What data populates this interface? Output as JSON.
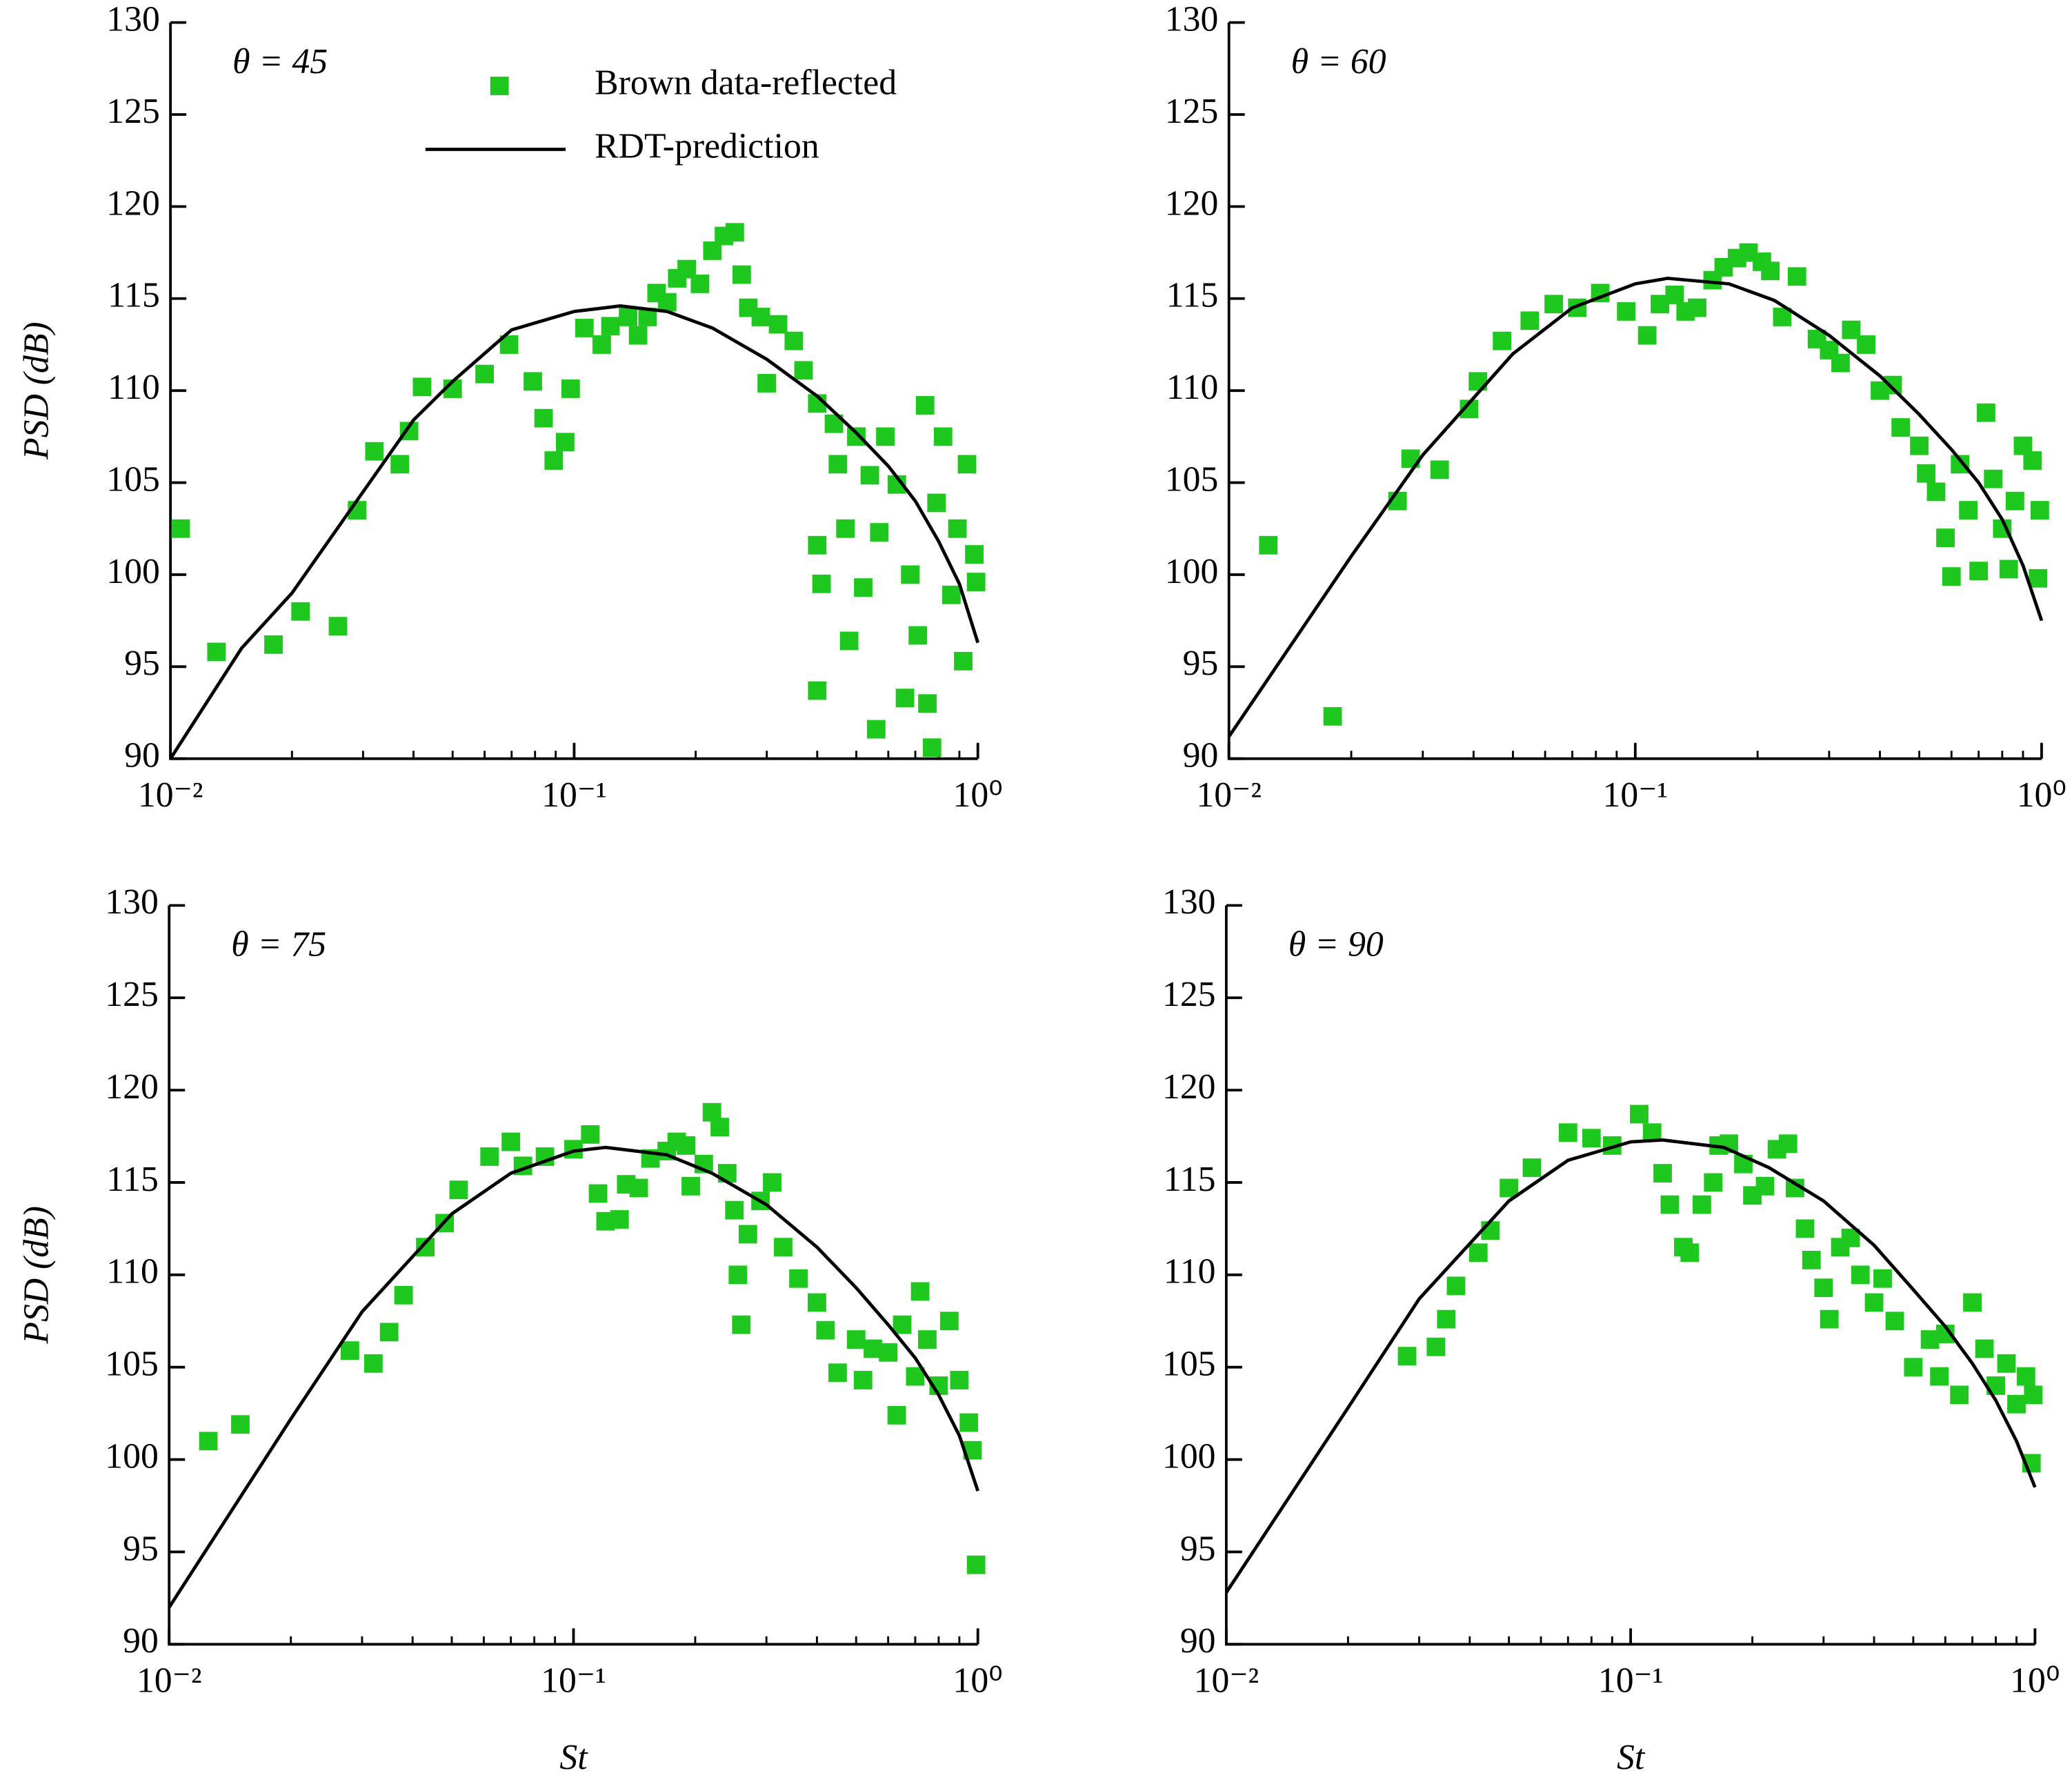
{
  "chart_data": [
    {
      "type": "scatter",
      "annotation": "θ = 45",
      "ylabel": "PSD (dB)",
      "xscale": "log",
      "legend": "upper center",
      "xlim": [
        0.01,
        1
      ],
      "xticks": [
        {
          "value": 0.01,
          "label": "10⁻²"
        },
        {
          "value": 0.1,
          "label": "10⁻¹"
        },
        {
          "value": 1,
          "label": "10⁰"
        }
      ],
      "ylim": [
        90,
        130
      ],
      "yticks": [
        90,
        95,
        100,
        105,
        110,
        115,
        120,
        125,
        130
      ],
      "series": [
        {
          "name": "Brown data-reflected",
          "color": "#1ec81e",
          "marker": "square",
          "x": [
            0.0106,
            0.013,
            0.018,
            0.021,
            0.026,
            0.029,
            0.032,
            0.037,
            0.039,
            0.042,
            0.05,
            0.06,
            0.069,
            0.079,
            0.084,
            0.089,
            0.095,
            0.098,
            0.106,
            0.117,
            0.123,
            0.136,
            0.144,
            0.152,
            0.16,
            0.17,
            0.18,
            0.19,
            0.205,
            0.22,
            0.235,
            0.25,
            0.26,
            0.27,
            0.29,
            0.3,
            0.32,
            0.35,
            0.37,
            0.4,
            0.4,
            0.4,
            0.41,
            0.44,
            0.45,
            0.47,
            0.48,
            0.5,
            0.52,
            0.54,
            0.56,
            0.57,
            0.59,
            0.63,
            0.66,
            0.68,
            0.71,
            0.74,
            0.75,
            0.77,
            0.79,
            0.82,
            0.86,
            0.89,
            0.92,
            0.94,
            0.98,
            0.99
          ],
          "values": [
            102.5,
            95.8,
            96.2,
            98,
            97.2,
            103.5,
            106.7,
            106,
            107.8,
            110.2,
            110.1,
            110.9,
            112.5,
            110.5,
            108.5,
            106.2,
            107.2,
            110.1,
            113.4,
            112.5,
            113.5,
            114,
            113,
            114,
            115.3,
            114.8,
            116.1,
            116.6,
            115.8,
            117.6,
            118.4,
            118.6,
            116.3,
            114.5,
            114,
            110.4,
            113.6,
            112.7,
            111.1,
            109.3,
            101.6,
            93.7,
            99.5,
            108.2,
            106,
            102.5,
            96.4,
            107.5,
            99.3,
            105.4,
            91.6,
            102.3,
            107.5,
            104.9,
            93.3,
            100,
            96.7,
            109.2,
            93,
            90.6,
            103.9,
            107.5,
            98.9,
            102.5,
            95.3,
            106,
            101.1,
            99.6
          ]
        },
        {
          "name": "RDT-prediction",
          "color": "#000000",
          "type": "line",
          "x": [
            0.01,
            0.015,
            0.02,
            0.03,
            0.04,
            0.05,
            0.07,
            0.1,
            0.13,
            0.17,
            0.22,
            0.3,
            0.4,
            0.5,
            0.6,
            0.7,
            0.8,
            0.9,
            1
          ],
          "values": [
            90,
            96,
            99,
            104.5,
            108.4,
            110.5,
            113.3,
            114.3,
            114.6,
            114.3,
            113.4,
            111.7,
            109.7,
            107.7,
            105.9,
            104,
            101.8,
            99.5,
            96.3
          ]
        }
      ]
    },
    {
      "type": "scatter",
      "annotation": "θ = 60",
      "xscale": "log",
      "xlim": [
        0.01,
        1
      ],
      "xticks": [
        {
          "value": 0.01,
          "label": "10⁻²"
        },
        {
          "value": 0.1,
          "label": "10⁻¹"
        },
        {
          "value": 1,
          "label": "10⁰"
        }
      ],
      "ylim": [
        90,
        130
      ],
      "yticks": [
        90,
        95,
        100,
        105,
        110,
        115,
        120,
        125,
        130
      ],
      "series": [
        {
          "color": "#1ec81e",
          "marker": "square",
          "x": [
            0.0125,
            0.018,
            0.026,
            0.028,
            0.033,
            0.039,
            0.041,
            0.047,
            0.055,
            0.063,
            0.072,
            0.082,
            0.095,
            0.107,
            0.115,
            0.125,
            0.133,
            0.142,
            0.155,
            0.165,
            0.178,
            0.19,
            0.205,
            0.215,
            0.23,
            0.25,
            0.28,
            0.3,
            0.32,
            0.34,
            0.37,
            0.4,
            0.43,
            0.45,
            0.5,
            0.52,
            0.55,
            0.58,
            0.6,
            0.63,
            0.66,
            0.7,
            0.73,
            0.76,
            0.8,
            0.83,
            0.86,
            0.9,
            0.95,
            0.98,
            0.99
          ],
          "values": [
            101.6,
            92.3,
            104,
            106.3,
            105.7,
            109,
            110.5,
            112.7,
            113.8,
            114.7,
            114.5,
            115.3,
            114.3,
            113,
            114.7,
            115.2,
            114.3,
            114.5,
            116,
            116.7,
            117.2,
            117.5,
            117,
            116.5,
            114,
            116.2,
            112.8,
            112.2,
            111.5,
            113.3,
            112.5,
            110,
            110.3,
            108,
            107,
            105.5,
            104.5,
            102,
            99.9,
            106,
            103.5,
            100.2,
            108.8,
            105.2,
            102.5,
            100.3,
            104,
            107,
            106.2,
            99.8,
            103.5
          ]
        },
        {
          "color": "#000000",
          "type": "line",
          "x": [
            0.01,
            0.02,
            0.03,
            0.05,
            0.07,
            0.1,
            0.12,
            0.17,
            0.22,
            0.3,
            0.4,
            0.5,
            0.6,
            0.7,
            0.8,
            0.9,
            1
          ],
          "values": [
            91.2,
            101,
            106.5,
            112,
            114.5,
            115.8,
            116.1,
            115.8,
            114.9,
            113,
            110.8,
            108.7,
            106.8,
            105,
            103,
            100.5,
            97.5
          ]
        }
      ]
    },
    {
      "type": "scatter",
      "annotation": "θ = 75",
      "ylabel": "PSD (dB)",
      "xlabel": "St",
      "xscale": "log",
      "xlim": [
        0.01,
        1
      ],
      "xticks": [
        {
          "value": 0.01,
          "label": "10⁻²"
        },
        {
          "value": 0.1,
          "label": "10⁻¹"
        },
        {
          "value": 1,
          "label": "10⁰"
        }
      ],
      "ylim": [
        90,
        130
      ],
      "yticks": [
        90,
        95,
        100,
        105,
        110,
        115,
        120,
        125,
        130
      ],
      "series": [
        {
          "color": "#1ec81e",
          "marker": "square",
          "x": [
            0.0125,
            0.015,
            0.028,
            0.032,
            0.035,
            0.038,
            0.043,
            0.048,
            0.052,
            0.062,
            0.07,
            0.075,
            0.085,
            0.1,
            0.11,
            0.115,
            0.12,
            0.13,
            0.135,
            0.145,
            0.155,
            0.17,
            0.18,
            0.19,
            0.195,
            0.21,
            0.22,
            0.23,
            0.24,
            0.25,
            0.255,
            0.26,
            0.27,
            0.29,
            0.31,
            0.33,
            0.36,
            0.4,
            0.42,
            0.45,
            0.5,
            0.52,
            0.55,
            0.6,
            0.63,
            0.65,
            0.7,
            0.72,
            0.75,
            0.8,
            0.85,
            0.9,
            0.95,
            0.97,
            0.99
          ],
          "values": [
            101,
            101.9,
            105.9,
            105.2,
            106.9,
            108.9,
            111.5,
            112.8,
            114.6,
            116.4,
            117.2,
            115.9,
            116.4,
            116.8,
            117.6,
            114.4,
            112.9,
            113,
            114.9,
            114.7,
            116.3,
            116.7,
            117.2,
            117,
            114.8,
            116,
            118.8,
            118,
            115.5,
            113.5,
            110,
            107.3,
            112.2,
            114,
            115,
            111.5,
            109.8,
            108.5,
            107,
            104.7,
            106.5,
            104.3,
            106,
            105.8,
            102.4,
            107.3,
            104.5,
            109.1,
            106.5,
            104,
            107.5,
            104.3,
            102,
            100.5,
            94.3
          ]
        },
        {
          "color": "#000000",
          "type": "line",
          "x": [
            0.01,
            0.02,
            0.03,
            0.05,
            0.07,
            0.1,
            0.12,
            0.17,
            0.22,
            0.3,
            0.4,
            0.5,
            0.6,
            0.7,
            0.8,
            0.9,
            1
          ],
          "values": [
            92,
            102.2,
            108,
            113.3,
            115.5,
            116.7,
            116.9,
            116.5,
            115.5,
            113.8,
            111.5,
            109.3,
            107.3,
            105.5,
            103.5,
            101.3,
            98.3
          ]
        }
      ]
    },
    {
      "type": "scatter",
      "annotation": "θ = 90",
      "xlabel": "St",
      "xscale": "log",
      "xlim": [
        0.01,
        1
      ],
      "xticks": [
        {
          "value": 0.01,
          "label": "10⁻²"
        },
        {
          "value": 0.1,
          "label": "10⁻¹"
        },
        {
          "value": 1,
          "label": "10⁰"
        }
      ],
      "ylim": [
        90,
        130
      ],
      "yticks": [
        90,
        95,
        100,
        105,
        110,
        115,
        120,
        125,
        130
      ],
      "series": [
        {
          "color": "#1ec81e",
          "marker": "square",
          "x": [
            0.028,
            0.033,
            0.035,
            0.037,
            0.042,
            0.045,
            0.05,
            0.057,
            0.07,
            0.08,
            0.09,
            0.105,
            0.113,
            0.12,
            0.125,
            0.135,
            0.14,
            0.15,
            0.16,
            0.165,
            0.175,
            0.19,
            0.2,
            0.215,
            0.23,
            0.245,
            0.255,
            0.27,
            0.28,
            0.3,
            0.31,
            0.33,
            0.35,
            0.37,
            0.4,
            0.42,
            0.45,
            0.5,
            0.55,
            0.58,
            0.6,
            0.65,
            0.7,
            0.75,
            0.8,
            0.85,
            0.9,
            0.95,
            0.98,
            0.99
          ],
          "values": [
            105.6,
            106.1,
            107.6,
            109.4,
            111.2,
            112.4,
            114.7,
            115.8,
            117.7,
            117.4,
            117,
            118.7,
            117.7,
            115.5,
            113.8,
            111.5,
            111.2,
            113.8,
            115,
            117,
            117.1,
            116,
            114.3,
            114.8,
            116.8,
            117.1,
            114.7,
            112.5,
            110.8,
            109.3,
            107.6,
            111.5,
            112,
            110,
            108.5,
            109.8,
            107.5,
            105,
            106.5,
            104.5,
            106.8,
            103.5,
            108.5,
            106,
            104,
            105.2,
            103,
            104.5,
            99.8,
            103.5
          ]
        },
        {
          "color": "#000000",
          "type": "line",
          "x": [
            0.01,
            0.02,
            0.03,
            0.05,
            0.07,
            0.1,
            0.12,
            0.17,
            0.22,
            0.3,
            0.4,
            0.5,
            0.6,
            0.7,
            0.8,
            0.9,
            1
          ],
          "values": [
            92.8,
            102.8,
            108.7,
            114,
            116.2,
            117.2,
            117.3,
            116.9,
            115.8,
            114,
            111.6,
            109.2,
            107.2,
            105.2,
            103.2,
            101,
            98.5
          ]
        }
      ]
    }
  ]
}
